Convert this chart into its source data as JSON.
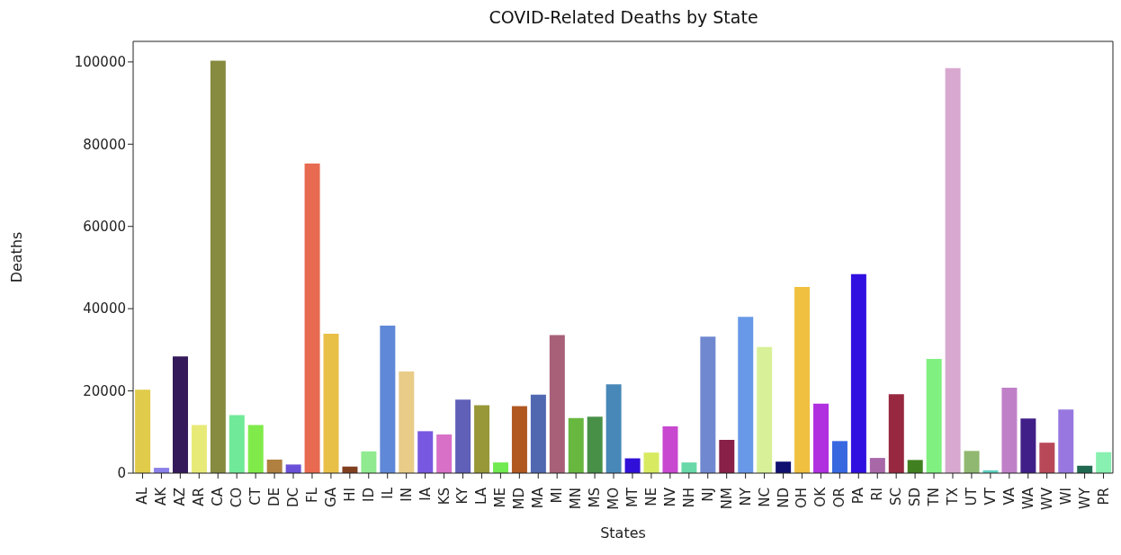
{
  "chart_data": {
    "type": "bar",
    "title": "COVID-Related Deaths by State",
    "xlabel": "States",
    "ylabel": "Deaths",
    "categories": [
      "AL",
      "AK",
      "AZ",
      "AR",
      "CA",
      "CO",
      "CT",
      "DE",
      "DC",
      "FL",
      "GA",
      "HI",
      "ID",
      "IL",
      "IN",
      "IA",
      "KS",
      "KY",
      "LA",
      "ME",
      "MD",
      "MA",
      "MI",
      "MN",
      "MS",
      "MO",
      "MT",
      "NE",
      "NV",
      "NH",
      "NJ",
      "NM",
      "NY",
      "NC",
      "ND",
      "OH",
      "OK",
      "OR",
      "PA",
      "RI",
      "SC",
      "SD",
      "TN",
      "TX",
      "UT",
      "VT",
      "VA",
      "WA",
      "WV",
      "WI",
      "WY",
      "PR"
    ],
    "values": [
      20300,
      1300,
      28400,
      11700,
      100300,
      14100,
      11700,
      3300,
      2100,
      75300,
      33900,
      1600,
      5300,
      35900,
      24700,
      10200,
      9400,
      17900,
      16500,
      2600,
      16300,
      19100,
      33600,
      13400,
      13700,
      21600,
      3600,
      5000,
      11400,
      2600,
      33200,
      8100,
      38000,
      30700,
      2800,
      45300,
      16900,
      7800,
      48400,
      3700,
      19200,
      3200,
      27800,
      98500,
      5400,
      700,
      20800,
      13300,
      7400,
      15500,
      1800,
      5100
    ],
    "colors": [
      "#e0cc4a",
      "#8a80e8",
      "#341a5a",
      "#e8ea78",
      "#868b40",
      "#70ea98",
      "#80ea4a",
      "#b08040",
      "#6a50d8",
      "#e86a50",
      "#e8c048",
      "#804020",
      "#90ea90",
      "#6088d8",
      "#e8cc88",
      "#7858e0",
      "#d870c8",
      "#6060b8",
      "#989838",
      "#70ea50",
      "#b05820",
      "#5068b0",
      "#a86078",
      "#68b840",
      "#489048",
      "#4888b8",
      "#3010d8",
      "#d8ea60",
      "#c848d0",
      "#68d8a8",
      "#7088d0",
      "#882048",
      "#6898e8",
      "#d8f098",
      "#101070",
      "#f0c040",
      "#b030e0",
      "#3868e0",
      "#3010e0",
      "#a868a8",
      "#982840",
      "#408020",
      "#80f080",
      "#d8a8d0",
      "#90b870",
      "#60d0c0",
      "#c080c8",
      "#402088",
      "#b84858",
      "#9878e0",
      "#206850",
      "#88f0b0"
    ],
    "ylim": [
      0,
      105000
    ],
    "yticks": [
      0,
      20000,
      40000,
      60000,
      80000,
      100000
    ]
  }
}
